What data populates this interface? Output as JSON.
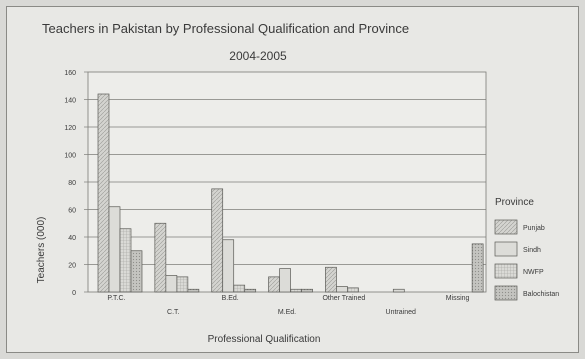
{
  "chart_data": {
    "type": "bar",
    "title": "Teachers in Pakistan by Professional Qualification and Province",
    "subtitle": "2004-2005",
    "xlabel": "Professional Qualification",
    "ylabel": "Teachers (000)",
    "ylim": [
      0,
      160
    ],
    "yticks": [
      0,
      20,
      40,
      60,
      80,
      100,
      120,
      140,
      160
    ],
    "grid": true,
    "legend_title": "Province",
    "legend_position": "right",
    "categories": [
      "P.T.C.",
      "C.T.",
      "B.Ed.",
      "M.Ed.",
      "Other Trained",
      "Untrained",
      "Missing"
    ],
    "series": [
      {
        "name": "Punjab",
        "color": "#cfcfcb",
        "pattern": "hatch",
        "values": [
          144,
          50,
          75,
          11,
          18,
          0,
          0
        ]
      },
      {
        "name": "Sindh",
        "color": "#dcdcd8",
        "pattern": "plain",
        "values": [
          62,
          12,
          38,
          17,
          4,
          2,
          0
        ]
      },
      {
        "name": "NWFP",
        "color": "#d2d2ce",
        "pattern": "grid",
        "values": [
          46,
          11,
          5,
          2,
          3,
          0,
          0
        ]
      },
      {
        "name": "Balochistan",
        "color": "#bdbdb9",
        "pattern": "dots",
        "values": [
          30,
          2,
          2,
          2,
          0,
          0,
          35
        ]
      }
    ]
  }
}
